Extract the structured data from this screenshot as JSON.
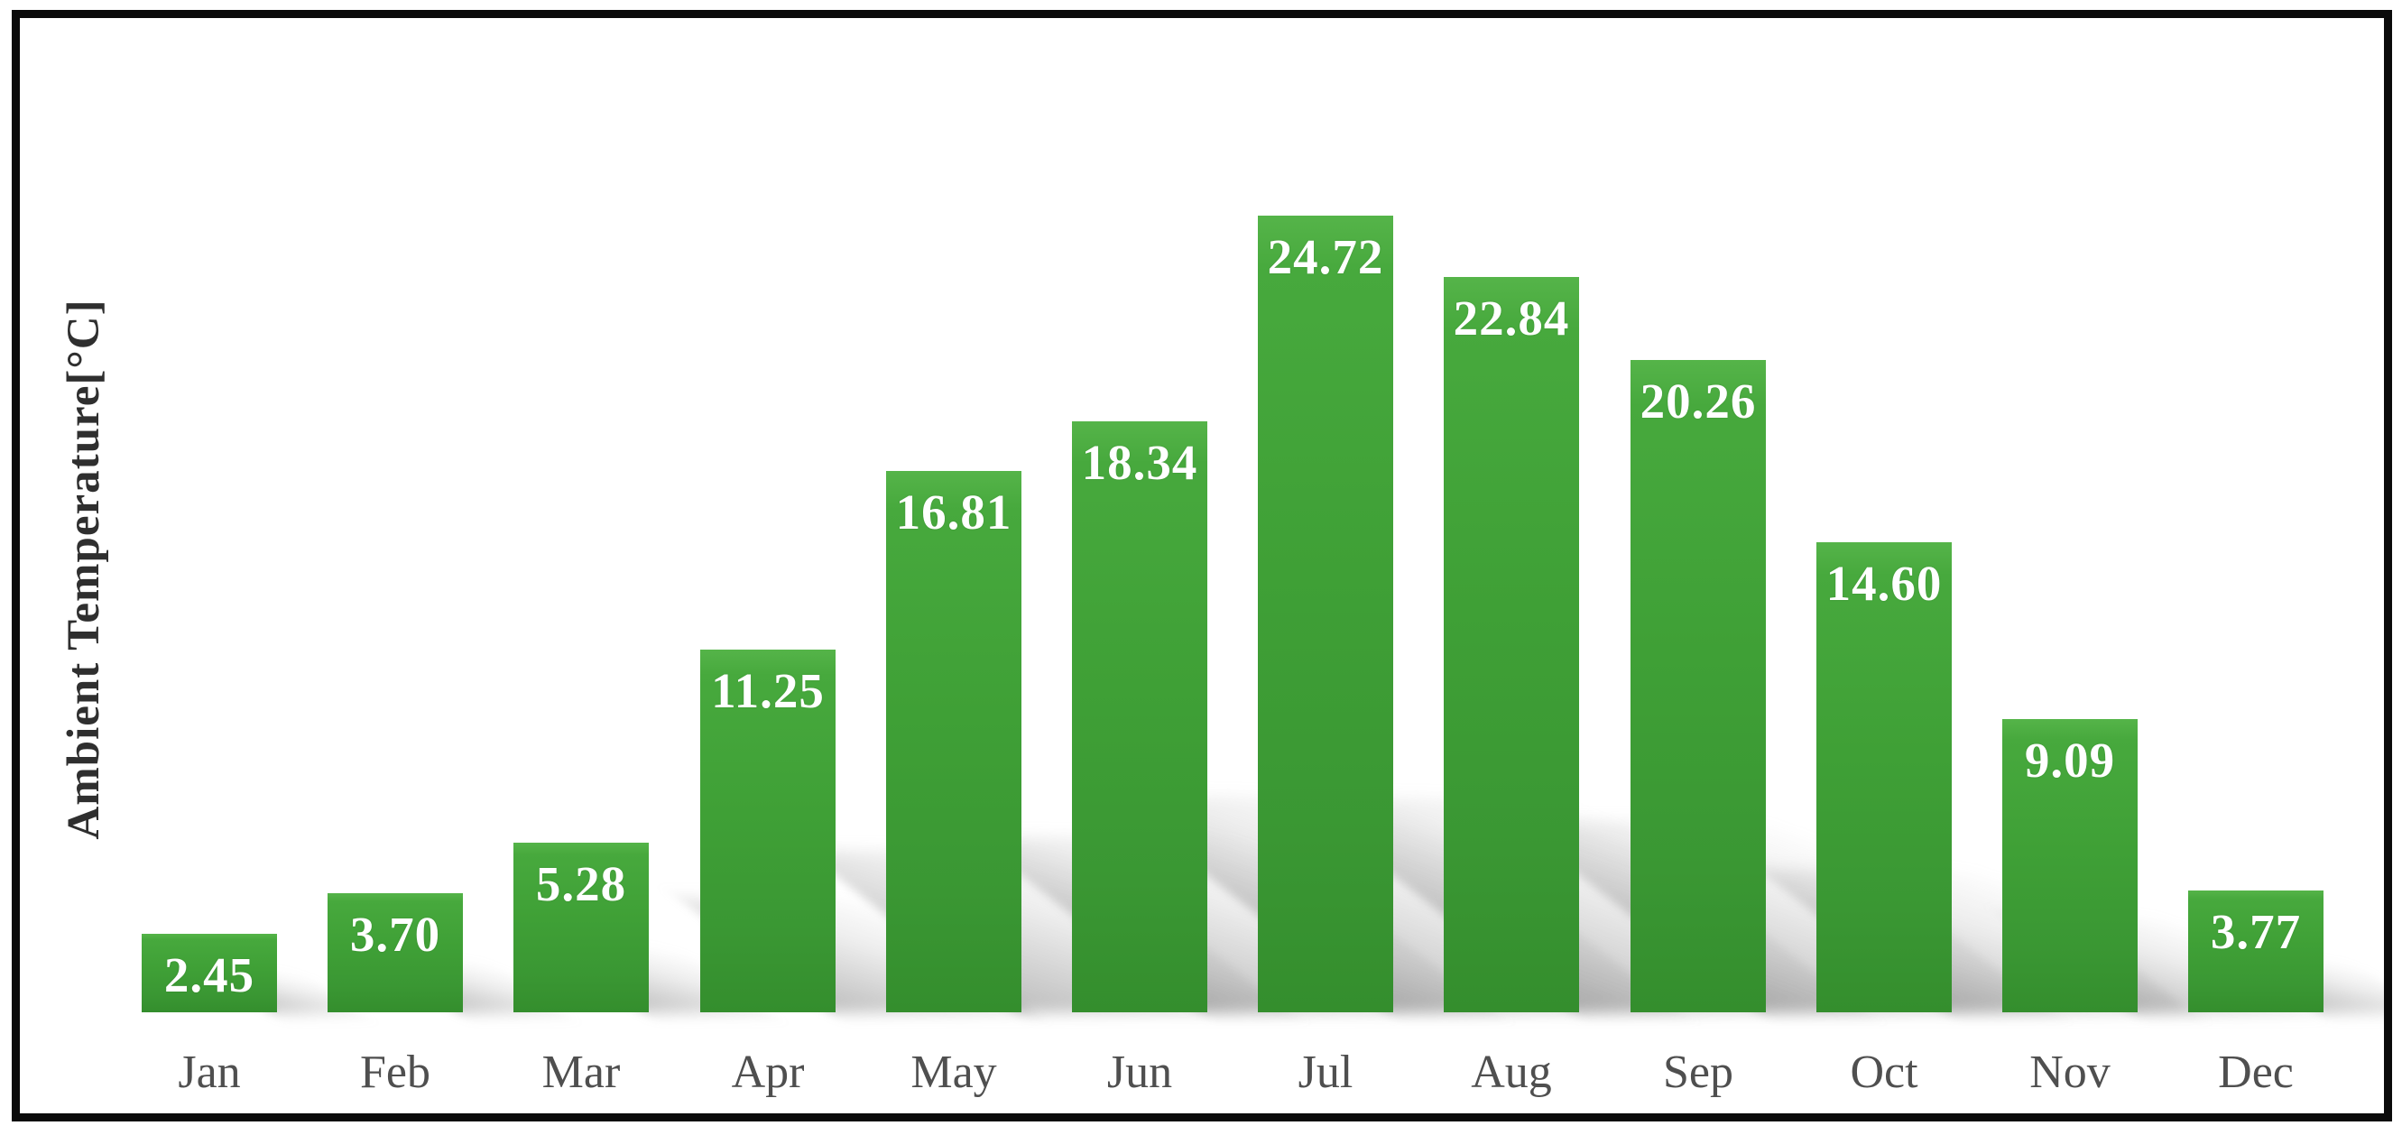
{
  "chart_data": {
    "type": "bar",
    "title": "",
    "xlabel": "",
    "ylabel": "Ambient Temperature[°C]",
    "categories": [
      "Jan",
      "Feb",
      "Mar",
      "Apr",
      "May",
      "Jun",
      "Jul",
      "Aug",
      "Sep",
      "Oct",
      "Nov",
      "Dec"
    ],
    "values": [
      2.45,
      3.7,
      5.28,
      11.25,
      16.81,
      18.34,
      24.72,
      22.84,
      20.26,
      14.6,
      9.09,
      3.77
    ],
    "value_label_decimals": 2,
    "value_label_position": "inside-top",
    "ylim": [
      0,
      26
    ],
    "grid": false,
    "legend": "none",
    "bar_color": "#3fa036",
    "bar_color_light": "#55b449",
    "bar_color_dark": "#348e2d",
    "value_label_color": "#ffffff",
    "tick_label_color": "#4f4f4f",
    "axis_label_color": "#2f2f2f",
    "frame_border_color": "#0b0b0b",
    "shadow_effect": "perspective-cast-bottom-right"
  }
}
